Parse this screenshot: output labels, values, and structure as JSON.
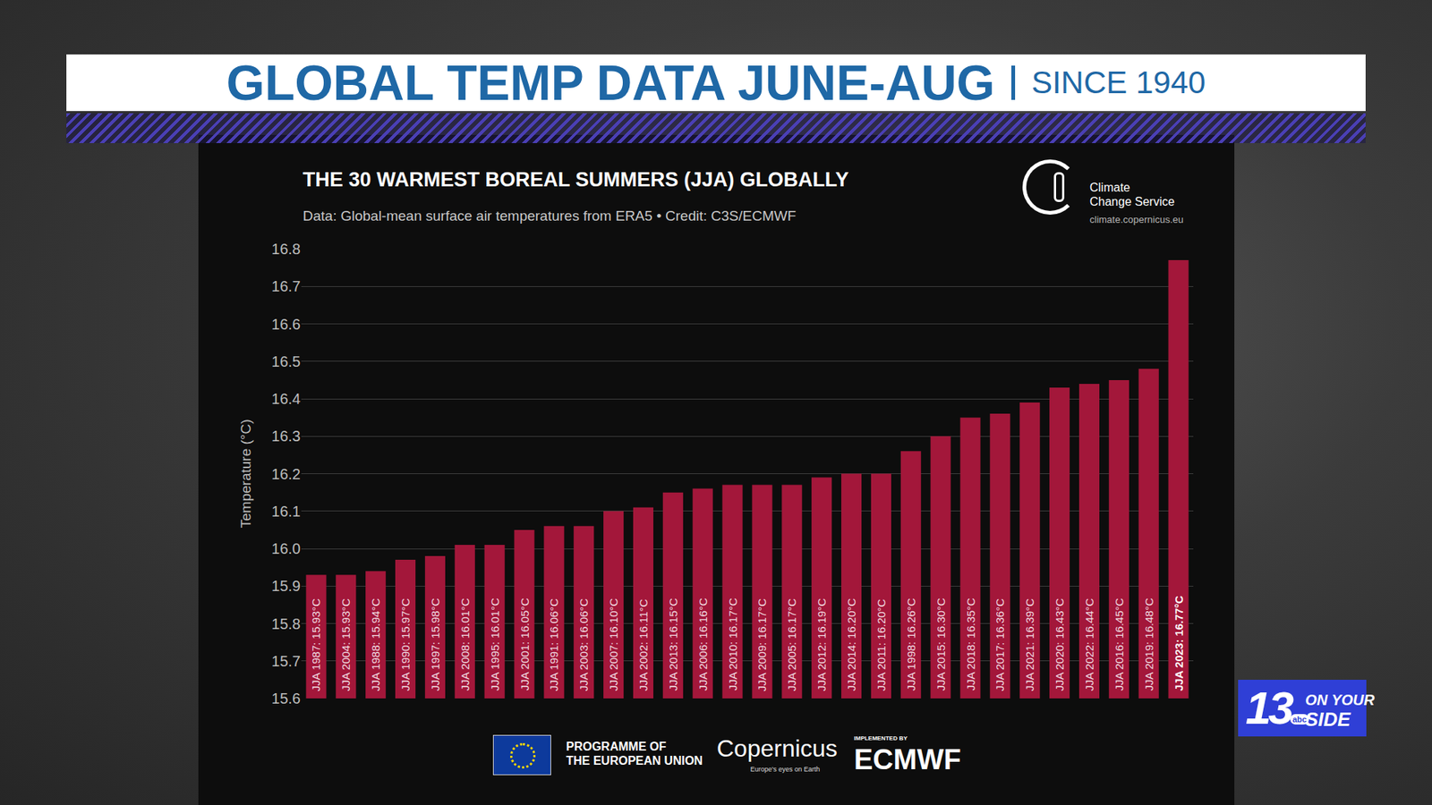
{
  "banner": {
    "title": "GLOBAL TEMP DATA JUNE-AUG",
    "subtitle": "SINCE 1940"
  },
  "chart_data": {
    "type": "bar",
    "title": "THE 30 WARMEST BOREAL SUMMERS (JJA) GLOBALLY",
    "subtitle": "Data: Global-mean surface air temperatures from ERA5 • Credit: C3S/ECMWF",
    "y_label": "Temperature (°C)",
    "categories": [
      "JJA 1987: 15.93°C",
      "JJA 2004: 15.93°C",
      "JJA 1988: 15.94°C",
      "JJA 1990: 15.97°C",
      "JJA 1997: 15.98°C",
      "JJA 2008: 16.01°C",
      "JJA 1995: 16.01°C",
      "JJA 2001: 16.05°C",
      "JJA 1991: 16.06°C",
      "JJA 2003: 16.06°C",
      "JJA 2007: 16.10°C",
      "JJA 2002: 16.11°C",
      "JJA 2013: 16.15°C",
      "JJA 2006: 16.16°C",
      "JJA 2010: 16.17°C",
      "JJA 2009: 16.17°C",
      "JJA 2005: 16.17°C",
      "JJA 2012: 16.19°C",
      "JJA 2014: 16.20°C",
      "JJA 2011: 16.20°C",
      "JJA 1998: 16.26°C",
      "JJA 2015: 16.30°C",
      "JJA 2018: 16.35°C",
      "JJA 2017: 16.36°C",
      "JJA 2021: 16.39°C",
      "JJA 2020: 16.43°C",
      "JJA 2022: 16.44°C",
      "JJA 2016: 16.45°C",
      "JJA 2019: 16.48°C",
      "JJA 2023: 16.77°C"
    ],
    "values": [
      15.93,
      15.93,
      15.94,
      15.97,
      15.98,
      16.01,
      16.01,
      16.05,
      16.06,
      16.06,
      16.1,
      16.11,
      16.15,
      16.16,
      16.17,
      16.17,
      16.17,
      16.19,
      16.2,
      16.2,
      16.26,
      16.3,
      16.35,
      16.36,
      16.39,
      16.43,
      16.44,
      16.45,
      16.48,
      16.77
    ],
    "color": "#a3173a",
    "ylim": [
      15.6,
      16.8
    ],
    "yticks": [
      15.6,
      15.7,
      15.8,
      15.9,
      {
        "value": 16,
        "label": "16.0"
      },
      16.1,
      16.2,
      16.3,
      16.4,
      16.5,
      16.6,
      16.7,
      16.8
    ],
    "grid": true,
    "tick_labels": "y"
  },
  "logo": {
    "lines": [
      "Climate",
      "Change Service"
    ],
    "url": "climate.copernicus.eu"
  },
  "footer": {
    "eu": [
      "PROGRAMME OF",
      "THE EUROPEAN UNION"
    ],
    "copernicus": "Copernicus",
    "copernicus_tagline": "Europe's eyes on Earth",
    "implemented_by": "IMPLEMENTED BY",
    "ecmwf": "ECMWF"
  },
  "station": {
    "number": "13",
    "network": "abc",
    "lines": [
      "ON YOUR",
      "SIDE"
    ]
  }
}
